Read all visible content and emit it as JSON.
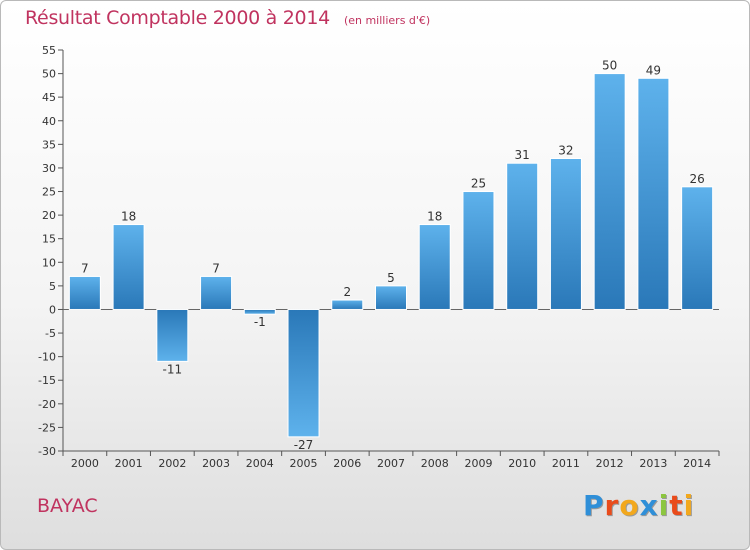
{
  "header": {
    "title": "Résultat Comptable 2000 à 2014",
    "unit": "(en milliers d'€)"
  },
  "commune": "BAYAC",
  "logo": {
    "text": "Proxiti",
    "letters": [
      {
        "ch": "P",
        "color": "#2f8fd8"
      },
      {
        "ch": "r",
        "color": "#e94b1b"
      },
      {
        "ch": "o",
        "color": "#f2a81d"
      },
      {
        "ch": "x",
        "color": "#2f8fd8"
      },
      {
        "ch": "i",
        "color": "#8cc63f"
      },
      {
        "ch": "t",
        "color": "#e94b1b"
      },
      {
        "ch": "i",
        "color": "#f2a81d"
      }
    ]
  },
  "colors": {
    "title": "#c0335f",
    "bar_light": "#5eb2ec",
    "bar_dark": "#2a78b8"
  },
  "chart_data": {
    "type": "bar",
    "title": "Résultat Comptable 2000 à 2014",
    "subtitle": "(en milliers d'€)",
    "xlabel": "",
    "ylabel": "",
    "categories": [
      "2000",
      "2001",
      "2002",
      "2003",
      "2004",
      "2005",
      "2006",
      "2007",
      "2008",
      "2009",
      "2010",
      "2011",
      "2012",
      "2013",
      "2014"
    ],
    "values": [
      7,
      18,
      -11,
      7,
      -1,
      -27,
      2,
      5,
      18,
      25,
      31,
      32,
      50,
      49,
      26
    ],
    "ylim": [
      -30,
      55
    ],
    "yticks": [
      -30,
      -25,
      -20,
      -15,
      -10,
      -5,
      0,
      5,
      10,
      15,
      20,
      25,
      30,
      35,
      40,
      45,
      50,
      55
    ],
    "grid": false,
    "legend": "none"
  }
}
